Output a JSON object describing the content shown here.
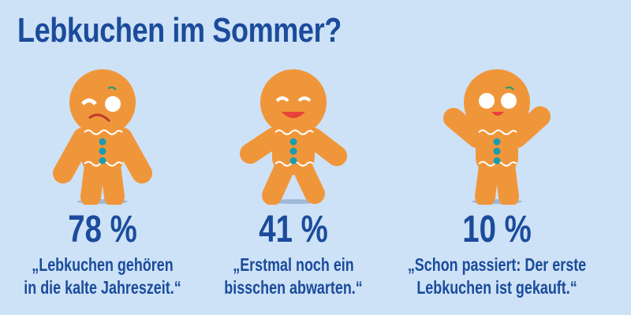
{
  "title": "Lebkuchen im Sommer?",
  "colors": {
    "background": "#cde2f6",
    "text": "#1b4b9b",
    "gingerbread": "#f0963a",
    "buttons": "#1a9cb0"
  },
  "items": [
    {
      "percent": "78 %",
      "value": 78,
      "line1": "„Lebkuchen gehören",
      "line2": "in die kalte Jahreszeit.“",
      "face": "sad-gingerbread-icon"
    },
    {
      "percent": "41 %",
      "value": 41,
      "line1": "„Erstmal noch ein",
      "line2": "bisschen abwarten.“",
      "face": "happy-gingerbread-icon"
    },
    {
      "percent": "10 %",
      "value": 10,
      "line1": "„Schon passiert: Der erste",
      "line2": "Lebkuchen ist gekauft.“",
      "face": "cheering-gingerbread-icon"
    }
  ]
}
